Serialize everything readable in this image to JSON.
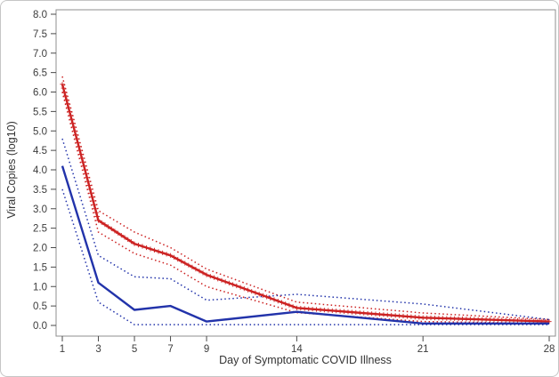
{
  "figure": {
    "background": "#ffffff",
    "frame_color": "#c6c6c6",
    "wall_border_color": "#8f8f8f"
  },
  "colors": {
    "red_series": "#cc2222",
    "blue_series": "#2233aa",
    "tick_text": "#3c3c3c",
    "axis_text": "#333333"
  },
  "chart_data": {
    "type": "line",
    "title": "",
    "xlabel": "Day of Symptomatic COVID Illness",
    "ylabel": "Viral Copies (log10)",
    "x": [
      1,
      3,
      5,
      7,
      9,
      14,
      21,
      28
    ],
    "x_ticks": [
      "1",
      "3",
      "5",
      "7",
      "9",
      "14",
      "21",
      "28"
    ],
    "xlim": [
      1,
      28
    ],
    "ylim": [
      0,
      8
    ],
    "y_tick_step": 0.5,
    "grid": false,
    "legend_position": "none",
    "series": [
      {
        "name": "red-mean-viral-load",
        "style": "solid-with-plus-markers",
        "color": "#cc2222",
        "values": [
          6.2,
          2.7,
          2.1,
          1.8,
          1.3,
          0.45,
          0.2,
          0.1
        ]
      },
      {
        "name": "red-upper-confidence-band",
        "style": "dotted",
        "color": "#cc2222",
        "values": [
          6.4,
          2.95,
          2.4,
          2.0,
          1.45,
          0.6,
          0.32,
          0.15
        ]
      },
      {
        "name": "red-lower-confidence-band",
        "style": "dotted",
        "color": "#cc2222",
        "values": [
          6.0,
          2.4,
          1.85,
          1.55,
          1.0,
          0.33,
          0.1,
          0.05
        ]
      },
      {
        "name": "blue-mean-viral-load",
        "style": "solid",
        "color": "#2233aa",
        "values": [
          4.1,
          1.1,
          0.4,
          0.5,
          0.1,
          0.35,
          0.05,
          0.05
        ]
      },
      {
        "name": "blue-upper-confidence-band",
        "style": "dotted",
        "color": "#2233aa",
        "values": [
          4.8,
          1.8,
          1.25,
          1.2,
          0.65,
          0.8,
          0.55,
          0.15
        ]
      },
      {
        "name": "blue-lower-confidence-band",
        "style": "dotted",
        "color": "#2233aa",
        "values": [
          3.5,
          0.6,
          0.02,
          0.02,
          0.02,
          0.02,
          0.02,
          0.02
        ]
      }
    ]
  }
}
